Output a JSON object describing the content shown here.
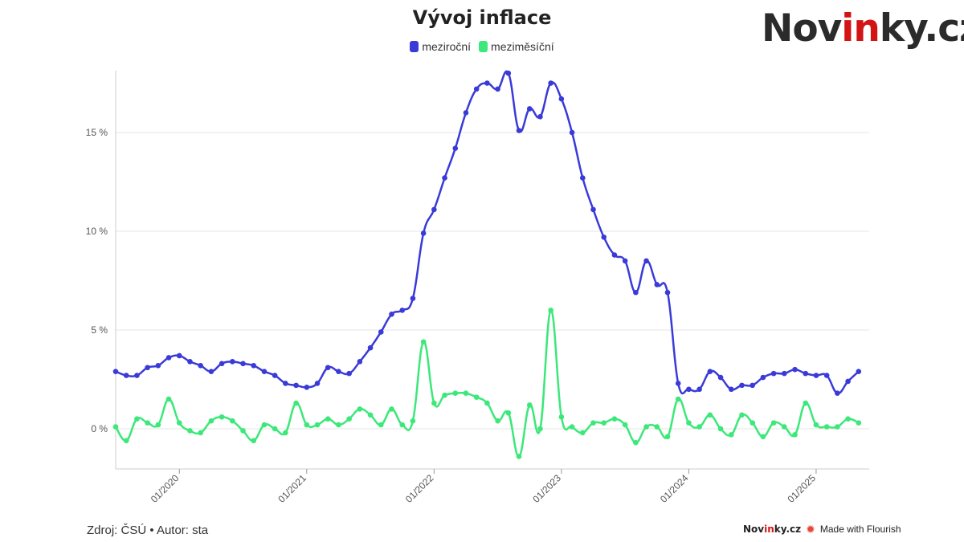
{
  "header": {
    "title": "Vývoj inflace",
    "logo_prefix": "Nov",
    "logo_highlight": "in",
    "logo_suffix": "ky.cz"
  },
  "legend": {
    "series_1": "meziroční",
    "series_2": "meziměsíční"
  },
  "footer": {
    "source": "Zdroj: ČSÚ • Autor: sta",
    "brand_prefix": "Nov",
    "brand_highlight": "in",
    "brand_suffix": "ky.cz",
    "flourish": "Made with Flourish"
  },
  "colors": {
    "yoy": "#3a3ad9",
    "mom": "#3be879",
    "grid": "#e6e6e6",
    "brand_red": "#d31414"
  },
  "chart_data": {
    "type": "line",
    "title": "Vývoj inflace",
    "x_start": "2019-07",
    "x_end": "2025-06",
    "xticks": [
      "01/2020",
      "01/2021",
      "01/2022",
      "01/2023",
      "01/2024",
      "01/2025"
    ],
    "yticks": [
      "0 %",
      "5 %",
      "10 %",
      "15 %"
    ],
    "ytick_values": [
      0,
      5,
      10,
      15
    ],
    "ylim": [
      -2,
      18
    ],
    "grid": true,
    "legend_position": "top-center",
    "series": [
      {
        "name": "meziroční",
        "color": "#3a3ad9",
        "values": [
          2.9,
          2.7,
          2.7,
          3.1,
          3.2,
          3.6,
          3.7,
          3.4,
          3.2,
          2.9,
          3.3,
          3.4,
          3.3,
          3.2,
          2.9,
          2.7,
          2.3,
          2.2,
          2.1,
          2.3,
          3.1,
          2.9,
          2.8,
          3.4,
          4.1,
          4.9,
          5.8,
          6.0,
          6.6,
          9.9,
          11.1,
          12.7,
          14.2,
          16.0,
          17.2,
          17.5,
          17.2,
          18.0,
          15.1,
          16.2,
          15.8,
          17.5,
          16.7,
          15.0,
          12.7,
          11.1,
          9.7,
          8.8,
          8.5,
          6.9,
          8.5,
          7.3,
          6.9,
          2.3,
          2.0,
          2.0,
          2.9,
          2.6,
          2.0,
          2.2,
          2.2,
          2.6,
          2.8,
          2.8,
          3.0,
          2.8,
          2.7,
          2.7,
          1.8,
          2.4,
          2.9
        ]
      },
      {
        "name": "meziměsíční",
        "color": "#3be879",
        "values": [
          0.1,
          -0.6,
          0.5,
          0.3,
          0.2,
          1.5,
          0.3,
          -0.1,
          -0.2,
          0.4,
          0.6,
          0.4,
          -0.1,
          -0.6,
          0.2,
          0.0,
          -0.2,
          1.3,
          0.2,
          0.2,
          0.5,
          0.2,
          0.5,
          1.0,
          0.7,
          0.2,
          1.0,
          0.2,
          0.4,
          4.4,
          1.3,
          1.7,
          1.8,
          1.8,
          1.6,
          1.3,
          0.4,
          0.8,
          -1.4,
          1.2,
          0.0,
          6.0,
          0.6,
          0.1,
          -0.2,
          0.3,
          0.3,
          0.5,
          0.2,
          -0.7,
          0.1,
          0.1,
          -0.4,
          1.5,
          0.3,
          0.1,
          0.7,
          0.0,
          -0.3,
          0.7,
          0.3,
          -0.4,
          0.3,
          0.1,
          -0.3,
          1.3,
          0.2,
          0.1,
          0.1,
          0.5,
          0.3
        ]
      }
    ]
  }
}
